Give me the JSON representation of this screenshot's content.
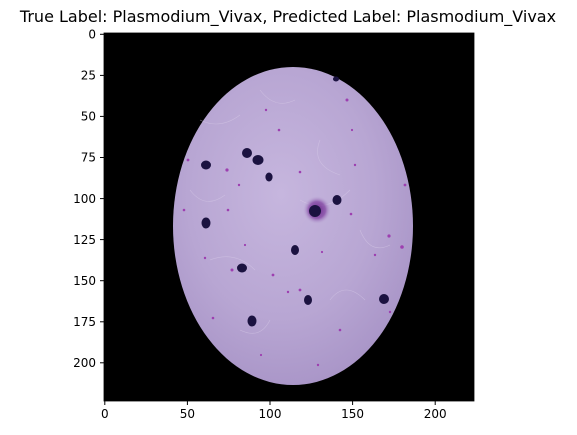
{
  "figure": {
    "title": "True Label: Plasmodium_Vivax, Predicted Label: Plasmodium_Vivax",
    "x_ticks": [
      "0",
      "50",
      "100",
      "150",
      "200"
    ],
    "y_ticks": [
      "0",
      "25",
      "50",
      "75",
      "100",
      "125",
      "150",
      "175",
      "200"
    ],
    "image_extent": {
      "x": [
        0,
        224
      ],
      "y": [
        224,
        0
      ]
    },
    "colors": {
      "background": "#000000",
      "smear": "#b7a5d2",
      "parasite": "#1b1240",
      "stain": "#9d3fb0"
    }
  }
}
